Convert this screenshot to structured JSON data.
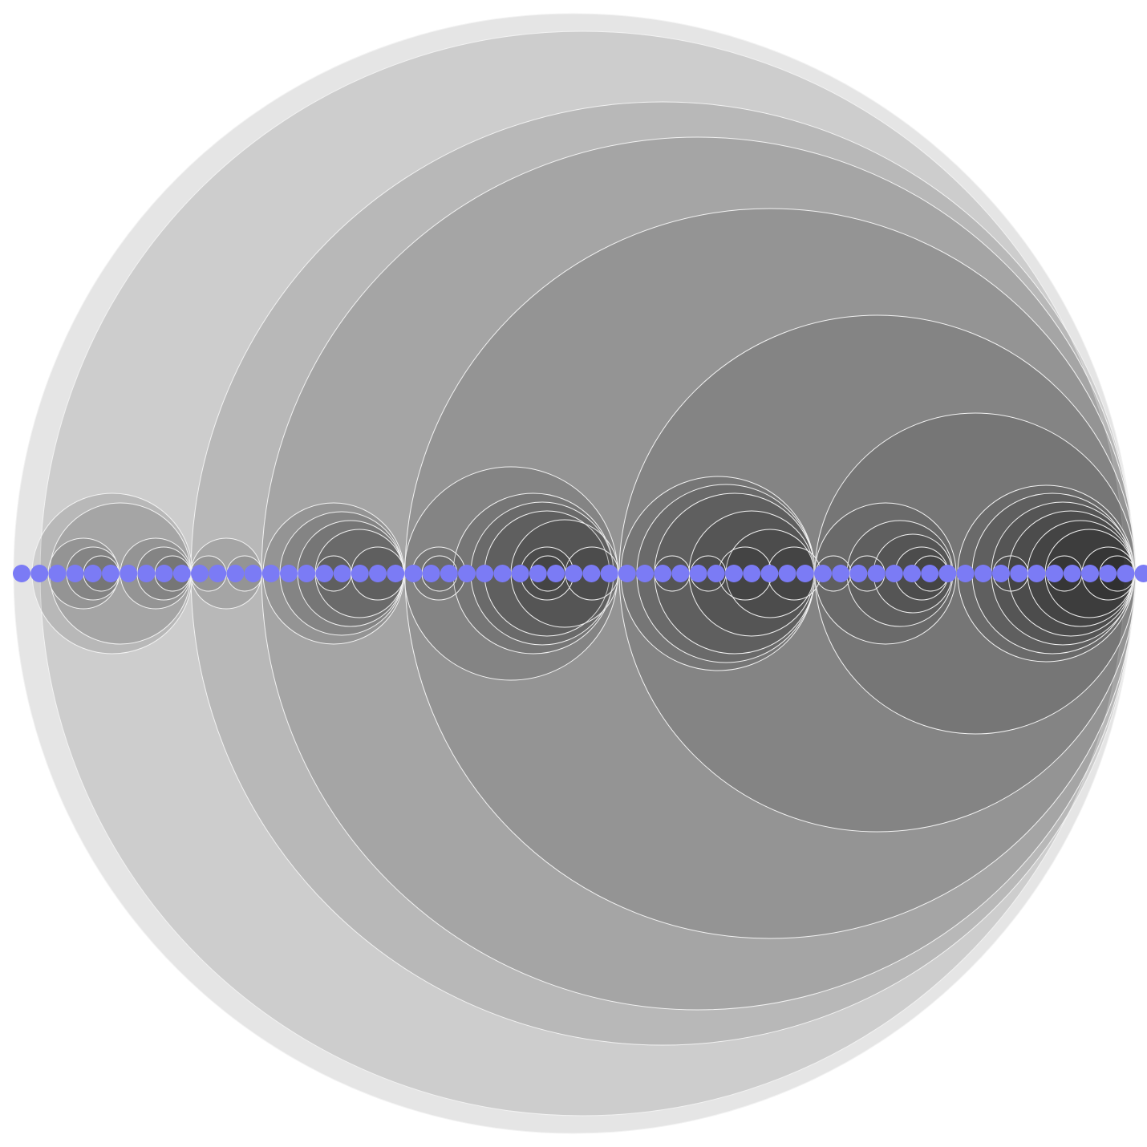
{
  "diagram": {
    "type": "circle-packing",
    "group_fill": "#000000",
    "group_stroke": "#f2f2f2",
    "leaf_color": "#7b7bf5",
    "background": "#ffffff",
    "leaf_count": 64
  }
}
